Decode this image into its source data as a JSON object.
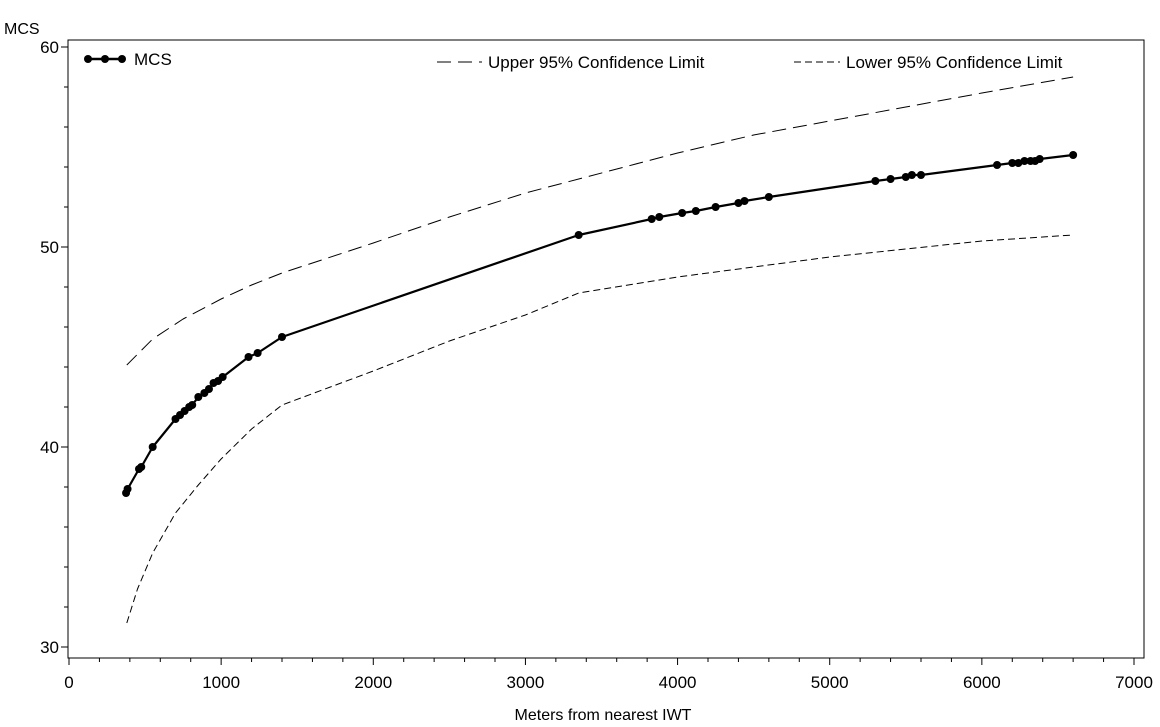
{
  "chart_data": {
    "type": "line",
    "title": "",
    "xlabel": "Meters from nearest IWT",
    "ylabel": "MCS",
    "xlim": [
      0,
      7000
    ],
    "ylim": [
      30,
      60
    ],
    "x_ticks": [
      0,
      1000,
      2000,
      3000,
      4000,
      5000,
      6000,
      7000
    ],
    "y_ticks": [
      30,
      40,
      50,
      60
    ],
    "grid": false,
    "legend_placement": "top",
    "series": [
      {
        "name": "MCS",
        "style": "solid-with-markers",
        "color": "#000000",
        "x": [
          375,
          385,
          460,
          475,
          550,
          700,
          730,
          760,
          790,
          810,
          850,
          890,
          920,
          950,
          980,
          1010,
          1180,
          1240,
          1400,
          3350,
          3830,
          3880,
          4030,
          4120,
          4250,
          4400,
          4440,
          4600,
          5300,
          5400,
          5500,
          5540,
          5600,
          6100,
          6200,
          6240,
          6280,
          6320,
          6350,
          6380,
          6600
        ],
        "y": [
          37.7,
          37.9,
          38.9,
          39.0,
          40.0,
          41.4,
          41.6,
          41.8,
          42.0,
          42.1,
          42.5,
          42.7,
          42.9,
          43.2,
          43.3,
          43.5,
          44.5,
          44.7,
          45.5,
          50.6,
          51.4,
          51.5,
          51.7,
          51.8,
          52.0,
          52.2,
          52.3,
          52.5,
          53.3,
          53.4,
          53.5,
          53.6,
          53.6,
          54.1,
          54.2,
          54.2,
          54.3,
          54.3,
          54.3,
          54.4,
          54.6
        ]
      },
      {
        "name": "Upper 95% Confidence Limit",
        "style": "long-dash",
        "color": "#000000",
        "x": [
          380,
          550,
          750,
          1000,
          1200,
          1400,
          2000,
          2500,
          3000,
          3350,
          4000,
          4500,
          5000,
          5500,
          6000,
          6600
        ],
        "y": [
          44.1,
          45.4,
          46.4,
          47.4,
          48.1,
          48.7,
          50.2,
          51.5,
          52.7,
          53.4,
          54.7,
          55.6,
          56.3,
          57.0,
          57.7,
          58.5
        ]
      },
      {
        "name": "Lower 95% Confidence Limit",
        "style": "short-dash",
        "color": "#000000",
        "x": [
          380,
          450,
          550,
          700,
          850,
          1000,
          1200,
          1400,
          2000,
          2500,
          3000,
          3350,
          4000,
          4500,
          5000,
          5500,
          6000,
          6600
        ],
        "y": [
          31.2,
          32.9,
          34.7,
          36.7,
          38.1,
          39.4,
          40.9,
          42.1,
          43.8,
          45.3,
          46.6,
          47.7,
          48.5,
          49.0,
          49.5,
          49.9,
          50.3,
          50.6
        ]
      }
    ],
    "legend": {
      "mcs": "MCS",
      "upper": "Upper 95% Confidence Limit",
      "lower": "Lower 95% Confidence Limit"
    }
  }
}
